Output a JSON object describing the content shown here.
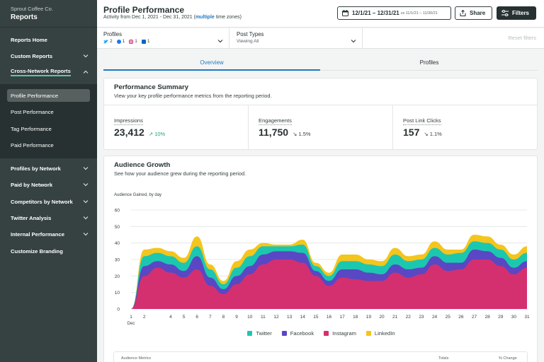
{
  "sidebar": {
    "org": "Sprout Coffee Co.",
    "title": "Reports",
    "items": [
      {
        "label": "Reports Home"
      },
      {
        "label": "Custom Reports"
      },
      {
        "label": "Cross-Network Reports"
      },
      {
        "label": "Profiles by Network"
      },
      {
        "label": "Paid by Network"
      },
      {
        "label": "Competitors by Network"
      },
      {
        "label": "Twitter Analysis"
      },
      {
        "label": "Internal Performance"
      },
      {
        "label": "Customize Branding"
      }
    ],
    "sub_items": [
      {
        "label": "Profile Performance"
      },
      {
        "label": "Post Performance"
      },
      {
        "label": "Tag Performance"
      },
      {
        "label": "Paid Performance"
      }
    ]
  },
  "header": {
    "title": "Profile Performance",
    "activity_prefix": "Activity from Dec 1, 2021 - Dec 31, 2021 (",
    "activity_link": "multiple",
    "activity_suffix": " time zones)",
    "date_range": "12/1/21 – 12/31/21",
    "compare_range": "vs 11/1/21 – 11/30/21",
    "share_label": "Share",
    "filters_label": "Filters"
  },
  "filters": {
    "profiles_label": "Profiles",
    "profile_counts": {
      "twitter": "2",
      "facebook": "1",
      "instagram": "1",
      "linkedin": "1"
    },
    "post_types_label": "Post Types",
    "post_types_value": "Viewing All",
    "reset_label": "Reset filters"
  },
  "tabs": [
    {
      "label": "Overview"
    },
    {
      "label": "Profiles"
    }
  ],
  "performance": {
    "title": "Performance Summary",
    "subtitle": "View your key profile performance metrics from the reporting period.",
    "metrics": [
      {
        "label": "Impressions",
        "value": "23,412",
        "change": "10%",
        "direction": "up"
      },
      {
        "label": "Engagements",
        "value": "11,750",
        "change": "1.5%",
        "direction": "down"
      },
      {
        "label": "Post Link Clicks",
        "value": "157",
        "change": "1.1%",
        "direction": "down"
      }
    ]
  },
  "audience": {
    "title": "Audience Growth",
    "subtitle": "See how your audience grew during the reporting period.",
    "table_header_left": "Audience Metrics",
    "table_header_totals": "Totals",
    "table_header_change": "% Change"
  },
  "colors": {
    "twitter": "#1cc7b0",
    "facebook": "#5a47c4",
    "instagram": "#d4306f",
    "linkedin": "#f4c51c"
  },
  "chart_data": {
    "type": "area",
    "stacked": true,
    "title": "Audience Gained, by day",
    "xlabel": "Dec",
    "ylabel": "",
    "ylim": [
      0,
      60
    ],
    "yticks": [
      0,
      10,
      20,
      30,
      40,
      50,
      60
    ],
    "x": [
      1,
      2,
      3,
      4,
      5,
      6,
      7,
      8,
      9,
      10,
      11,
      12,
      13,
      14,
      15,
      16,
      17,
      18,
      19,
      20,
      21,
      22,
      23,
      24,
      25,
      26,
      27,
      28,
      29,
      30,
      31
    ],
    "x_tick_labels": [
      "1",
      "2",
      "4",
      "5",
      "6",
      "7",
      "8",
      "9",
      "10",
      "11",
      "12",
      "13",
      "14",
      "15",
      "16",
      "17",
      "18",
      "19",
      "20",
      "21",
      "22",
      "23",
      "24",
      "25",
      "26",
      "27",
      "28",
      "29",
      "30",
      "31"
    ],
    "series": [
      {
        "name": "Instagram",
        "values": [
          0,
          20,
          25,
          22,
          19,
          24,
          14,
          9,
          15,
          21,
          27,
          30,
          30,
          28,
          20,
          14,
          19,
          18,
          17,
          17,
          22,
          19,
          21,
          27,
          23,
          24,
          30,
          30,
          26,
          21,
          25
        ]
      },
      {
        "name": "Facebook",
        "values": [
          0,
          6,
          4,
          5,
          4,
          8,
          5,
          3,
          5,
          5,
          6,
          5,
          5,
          6,
          3,
          3,
          5,
          6,
          5,
          4,
          5,
          5,
          4,
          5,
          5,
          4,
          6,
          5,
          5,
          4,
          4
        ]
      },
      {
        "name": "Twitter",
        "values": [
          0,
          6,
          5,
          5,
          5,
          6,
          5,
          3,
          5,
          6,
          5,
          3,
          3,
          5,
          3,
          3,
          5,
          5,
          5,
          5,
          6,
          5,
          5,
          5,
          5,
          6,
          5,
          5,
          5,
          5,
          5
        ]
      },
      {
        "name": "LinkedIn",
        "values": [
          0,
          4,
          3,
          3,
          3,
          6,
          3,
          2,
          4,
          4,
          2,
          1,
          1,
          3,
          2,
          2,
          4,
          4,
          3,
          3,
          4,
          3,
          3,
          4,
          3,
          2,
          4,
          4,
          3,
          3,
          4
        ]
      }
    ],
    "legend": [
      "Twitter",
      "Facebook",
      "Instagram",
      "LinkedIn"
    ]
  }
}
